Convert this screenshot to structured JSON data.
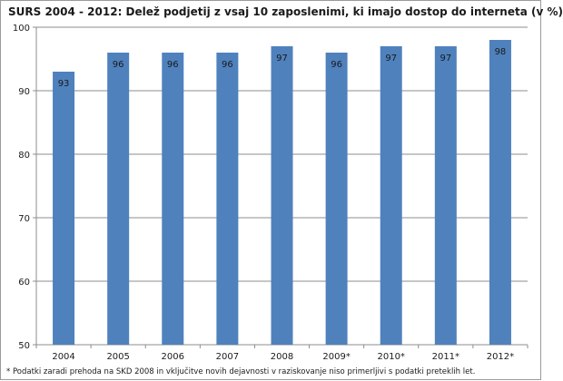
{
  "chart_data": {
    "type": "bar",
    "title": "SURS 2004 - 2012: Delež podjetij z vsaj 10 zaposlenimi, ki imajo dostop do interneta (v %)",
    "xlabel": "",
    "ylabel": "",
    "categories": [
      "2004",
      "2005",
      "2006",
      "2007",
      "2008",
      "2009*",
      "2010*",
      "2011*",
      "2012*"
    ],
    "values": [
      93,
      96,
      96,
      96,
      97,
      96,
      97,
      97,
      98
    ],
    "ylim": [
      50,
      100
    ],
    "yticks": [
      50,
      60,
      70,
      80,
      90,
      100
    ],
    "grid": true,
    "legend": "none",
    "bar_color": "#4f81bd",
    "footnote": "* Podatki zaradi prehoda na SKD  2008 in vključitve  novih dejavnosti v  raziskovanje niso primerljivi s podatki preteklih let."
  }
}
